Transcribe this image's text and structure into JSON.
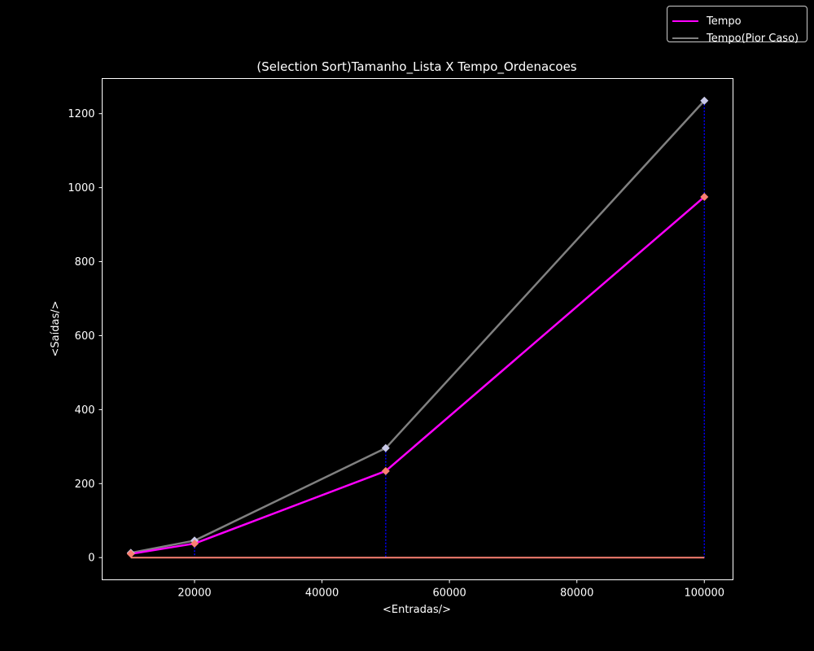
{
  "chart_data": {
    "type": "line",
    "title": "(Selection Sort)Tamanho_Lista X Tempo_Ordenacoes",
    "xlabel": "<Entradas/>",
    "ylabel": "<Saídas/>",
    "x": [
      10000,
      20000,
      50000,
      100000
    ],
    "xlim": [
      5500,
      104500
    ],
    "ylim": [
      -60,
      1295
    ],
    "xticks": [
      20000,
      40000,
      60000,
      80000,
      100000
    ],
    "yticks": [
      0,
      200,
      400,
      600,
      800,
      1000,
      1200
    ],
    "grid": false,
    "legend_position": "top-right",
    "series": [
      {
        "name": "Tempo",
        "values": [
          10,
          38,
          234,
          975
        ],
        "color": "#ff00ff",
        "marker_color": "#fa8072"
      },
      {
        "name": "Tempo(Pior Caso)",
        "values": [
          13,
          46,
          296,
          1235
        ],
        "color": "#808080",
        "marker_color": "#c8c8e6"
      }
    ],
    "baseline": {
      "value": 0,
      "color": "#fa8072"
    },
    "drop_lines_color": "#0000ff"
  }
}
